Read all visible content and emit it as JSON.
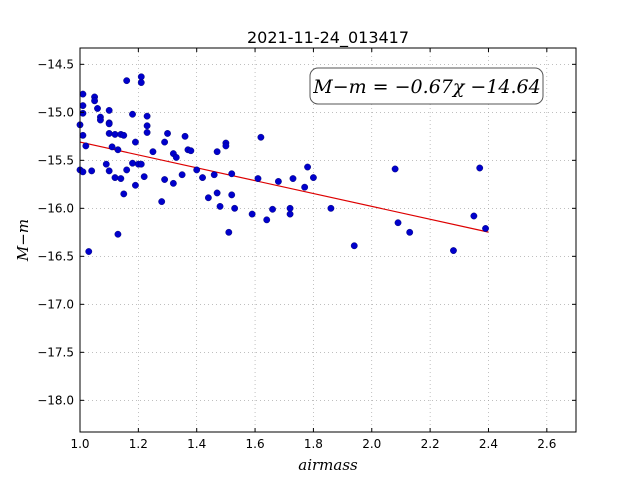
{
  "chart_data": {
    "type": "scatter",
    "title": "2021-11-24_013417",
    "xlabel": "airmass",
    "ylabel": "M−m",
    "xlim": [
      1.0,
      2.7
    ],
    "ylim": [
      -18.33,
      -14.33
    ],
    "y_inverted": true,
    "grid": true,
    "x_ticks": [
      "1.0",
      "1.2",
      "1.4",
      "1.6",
      "1.8",
      "2.0",
      "2.2",
      "2.4",
      "2.6"
    ],
    "y_ticks": [
      "−14.5",
      "−15.0",
      "−15.5",
      "−16.0",
      "−16.5",
      "−17.0",
      "−17.5",
      "−18.0"
    ],
    "x_tick_values": [
      1.0,
      1.2,
      1.4,
      1.6,
      1.8,
      2.0,
      2.2,
      2.4,
      2.6
    ],
    "y_tick_values": [
      -14.5,
      -15.0,
      -15.5,
      -16.0,
      -16.5,
      -17.0,
      -17.5,
      -18.0
    ],
    "annotation": "M−m = −0.67χ −14.64",
    "colors": {
      "points": "#0000cc",
      "fit": "#dd0000",
      "grid": "#999999"
    },
    "fit": {
      "slope": -0.67,
      "intercept": -14.64,
      "x_range": [
        1.0,
        2.4
      ]
    },
    "points": [
      [
        1.0,
        -15.13
      ],
      [
        1.0,
        -15.6
      ],
      [
        1.01,
        -15.62
      ],
      [
        1.01,
        -14.81
      ],
      [
        1.01,
        -14.93
      ],
      [
        1.01,
        -15.01
      ],
      [
        1.01,
        -15.24
      ],
      [
        1.02,
        -15.35
      ],
      [
        1.03,
        -16.45
      ],
      [
        1.04,
        -15.61
      ],
      [
        1.05,
        -14.84
      ],
      [
        1.05,
        -14.88
      ],
      [
        1.06,
        -14.96
      ],
      [
        1.07,
        -15.05
      ],
      [
        1.07,
        -15.08
      ],
      [
        1.09,
        -15.54
      ],
      [
        1.1,
        -15.61
      ],
      [
        1.1,
        -15.22
      ],
      [
        1.1,
        -15.11
      ],
      [
        1.1,
        -15.12
      ],
      [
        1.1,
        -14.98
      ],
      [
        1.11,
        -15.36
      ],
      [
        1.12,
        -15.23
      ],
      [
        1.12,
        -15.68
      ],
      [
        1.13,
        -15.39
      ],
      [
        1.13,
        -16.27
      ],
      [
        1.14,
        -15.69
      ],
      [
        1.14,
        -15.23
      ],
      [
        1.15,
        -15.85
      ],
      [
        1.15,
        -15.24
      ],
      [
        1.16,
        -14.67
      ],
      [
        1.16,
        -15.6
      ],
      [
        1.18,
        -15.02
      ],
      [
        1.18,
        -15.53
      ],
      [
        1.19,
        -15.31
      ],
      [
        1.19,
        -15.76
      ],
      [
        1.2,
        -15.54
      ],
      [
        1.21,
        -14.63
      ],
      [
        1.21,
        -14.69
      ],
      [
        1.21,
        -15.54
      ],
      [
        1.22,
        -15.67
      ],
      [
        1.23,
        -15.04
      ],
      [
        1.23,
        -15.14
      ],
      [
        1.23,
        -15.21
      ],
      [
        1.25,
        -15.41
      ],
      [
        1.28,
        -15.93
      ],
      [
        1.29,
        -15.7
      ],
      [
        1.29,
        -15.31
      ],
      [
        1.3,
        -15.22
      ],
      [
        1.32,
        -15.43
      ],
      [
        1.32,
        -15.74
      ],
      [
        1.33,
        -15.47
      ],
      [
        1.35,
        -15.65
      ],
      [
        1.36,
        -15.25
      ],
      [
        1.37,
        -15.39
      ],
      [
        1.38,
        -15.4
      ],
      [
        1.4,
        -15.6
      ],
      [
        1.42,
        -15.68
      ],
      [
        1.44,
        -15.89
      ],
      [
        1.46,
        -15.65
      ],
      [
        1.47,
        -15.84
      ],
      [
        1.47,
        -15.41
      ],
      [
        1.48,
        -15.98
      ],
      [
        1.5,
        -15.32
      ],
      [
        1.5,
        -15.35
      ],
      [
        1.51,
        -16.25
      ],
      [
        1.52,
        -15.64
      ],
      [
        1.52,
        -15.86
      ],
      [
        1.53,
        -16.0
      ],
      [
        1.59,
        -16.06
      ],
      [
        1.61,
        -15.69
      ],
      [
        1.62,
        -15.26
      ],
      [
        1.64,
        -16.12
      ],
      [
        1.66,
        -16.01
      ],
      [
        1.68,
        -15.72
      ],
      [
        1.72,
        -16.06
      ],
      [
        1.72,
        -16.0
      ],
      [
        1.73,
        -15.69
      ],
      [
        1.77,
        -15.78
      ],
      [
        1.78,
        -15.57
      ],
      [
        1.8,
        -15.68
      ],
      [
        1.86,
        -16.0
      ],
      [
        1.94,
        -16.39
      ],
      [
        2.08,
        -15.59
      ],
      [
        2.09,
        -16.15
      ],
      [
        2.13,
        -16.25
      ],
      [
        2.28,
        -16.44
      ],
      [
        2.35,
        -16.08
      ],
      [
        2.37,
        -15.58
      ],
      [
        2.39,
        -16.21
      ]
    ]
  }
}
